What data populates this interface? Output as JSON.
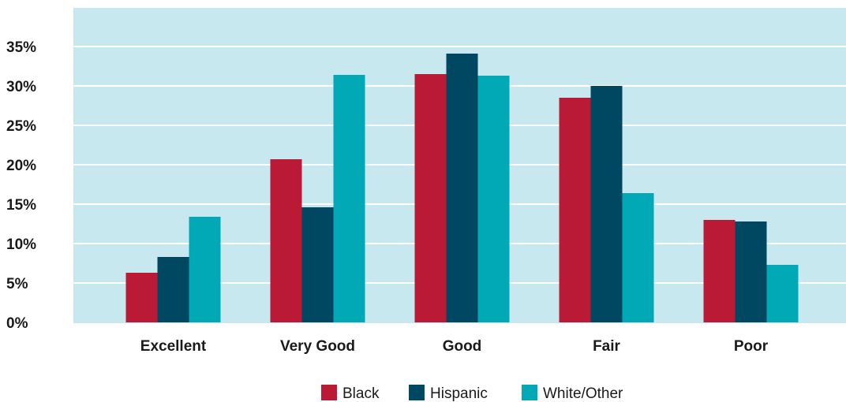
{
  "chart_data": {
    "type": "bar",
    "categories": [
      "Excellent",
      "Very Good",
      "Good",
      "Fair",
      "Poor"
    ],
    "series": [
      {
        "name": "Black",
        "color": "#bb1a36",
        "values": [
          6.3,
          20.7,
          31.5,
          28.5,
          13.0
        ]
      },
      {
        "name": "Hispanic",
        "color": "#004861",
        "values": [
          8.3,
          14.6,
          34.1,
          30.0,
          12.8
        ]
      },
      {
        "name": "White/Other",
        "color": "#00a9b5",
        "values": [
          13.4,
          31.4,
          31.3,
          16.4,
          7.3
        ]
      }
    ],
    "y_ticks": [
      "0%",
      "5%",
      "10%",
      "15%",
      "20%",
      "25%",
      "30%",
      "35%"
    ],
    "ylim": [
      0,
      40
    ],
    "grid": true,
    "legend_position": "bottom-center",
    "plot_background": "#c7e8ef",
    "gridline_color": "#ffffff"
  }
}
